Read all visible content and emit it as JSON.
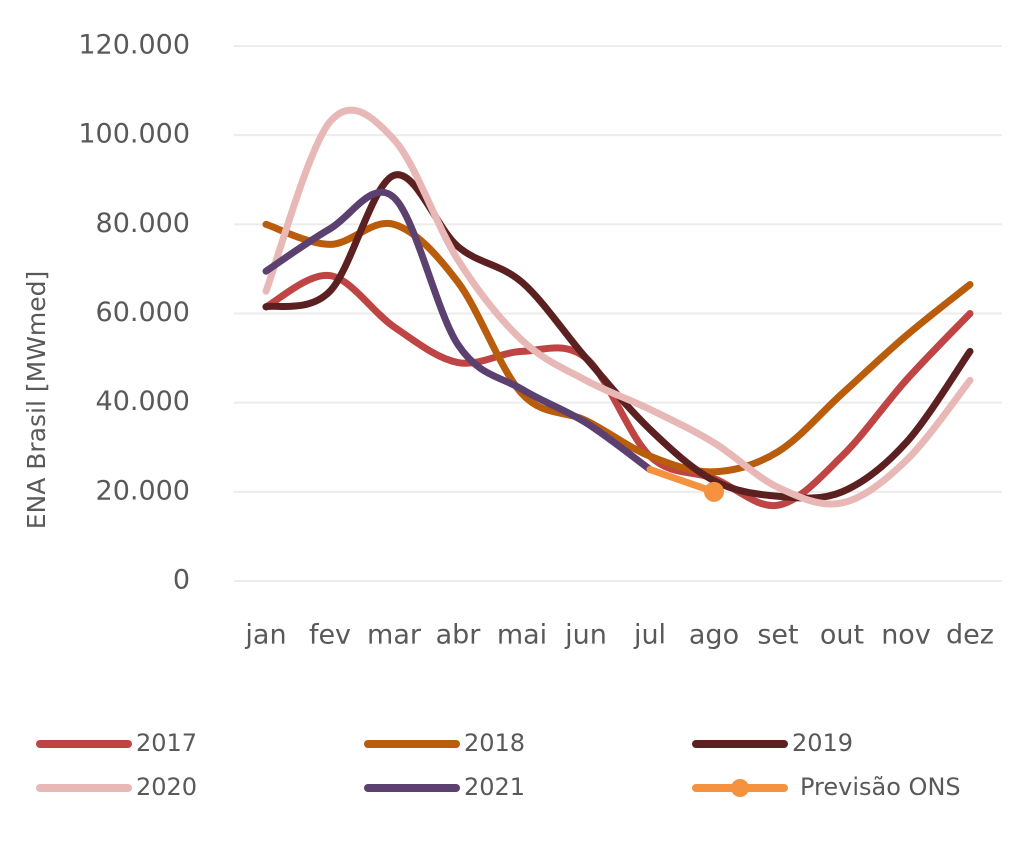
{
  "chart_data": {
    "type": "line",
    "y_label": "ENA Brasil [MWmed]",
    "categories": [
      "jan",
      "fev",
      "mar",
      "abr",
      "mai",
      "jun",
      "jul",
      "ago",
      "set",
      "out",
      "nov",
      "dez"
    ],
    "series": [
      {
        "name": "2017",
        "color": "#bf4444",
        "values": [
          61500,
          68500,
          57000,
          49000,
          51500,
          50000,
          28000,
          23000,
          17000,
          28000,
          45000,
          60000
        ]
      },
      {
        "name": "2018",
        "color": "#b95c0c",
        "values": [
          80000,
          75500,
          80000,
          67000,
          42000,
          36000,
          28000,
          24500,
          29000,
          42000,
          55000,
          66500
        ]
      },
      {
        "name": "2019",
        "color": "#5c2020",
        "values": [
          61500,
          65000,
          91000,
          75000,
          67000,
          50000,
          34000,
          22500,
          19000,
          20000,
          31000,
          51500
        ]
      },
      {
        "name": "2020",
        "color": "#e8b8b6",
        "values": [
          65000,
          103000,
          99000,
          72000,
          54000,
          45000,
          38500,
          31000,
          21000,
          17500,
          27000,
          45000
        ]
      },
      {
        "name": "2021",
        "color": "#5b4070",
        "values": [
          69500,
          79000,
          86000,
          53000,
          43000,
          35500,
          25000,
          null,
          null,
          null,
          null,
          null
        ]
      },
      {
        "name": "Previsão ONS",
        "color": "#f4923f",
        "values": [
          null,
          null,
          null,
          null,
          null,
          null,
          25000,
          20000,
          null,
          null,
          null,
          null
        ]
      }
    ],
    "ylim": [
      0,
      120000
    ],
    "yticks": [
      0,
      {
        "value": 20000,
        "label": "20.000"
      },
      {
        "value": 40000,
        "label": "40.000"
      },
      {
        "value": 60000,
        "label": "60.000"
      },
      {
        "value": 80000,
        "label": "80.000"
      },
      {
        "value": 100000,
        "label": "100.000"
      },
      {
        "value": 120000,
        "label": "120.000"
      }
    ],
    "grid": true,
    "legend": "bottom"
  }
}
